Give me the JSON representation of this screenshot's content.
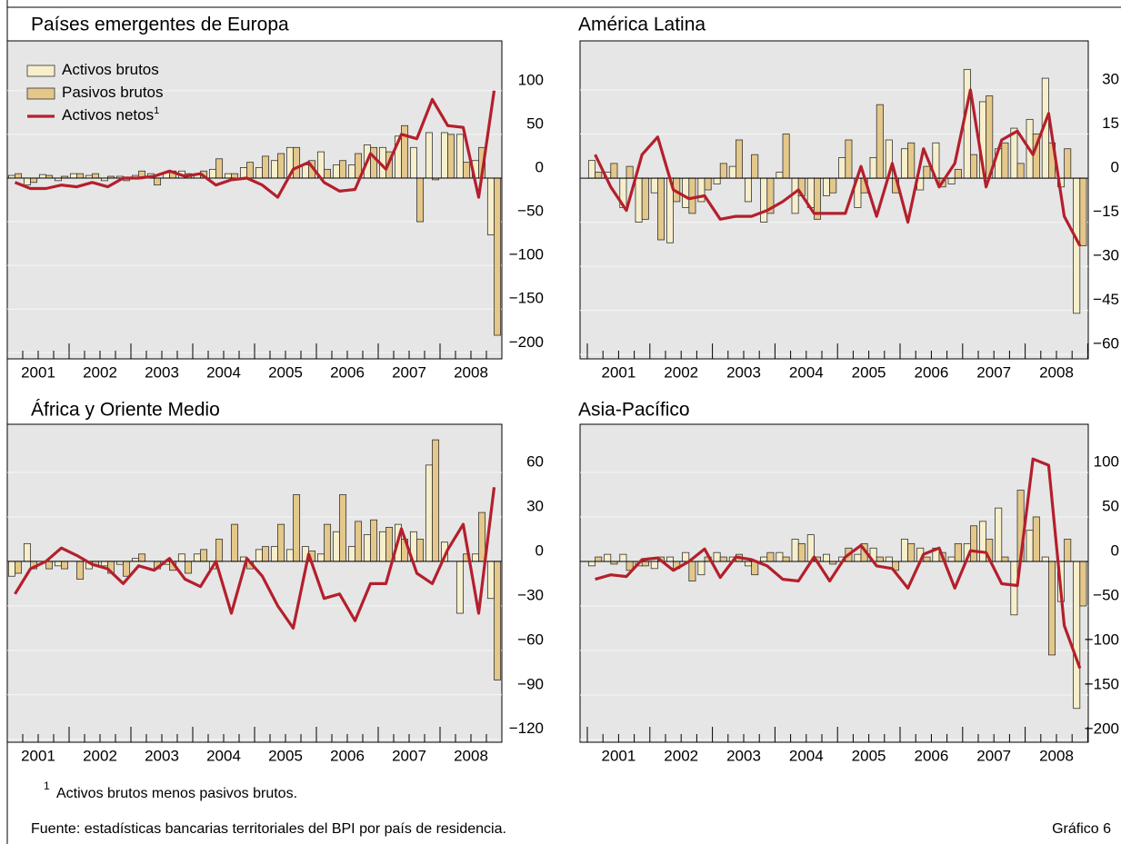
{
  "chart_data": [
    {
      "type": "bar",
      "title": "Países emergentes de Europa",
      "categories": [
        null,
        "2001",
        null,
        null,
        null,
        "2002",
        null,
        null,
        null,
        "2003",
        null,
        null,
        null,
        "2004",
        null,
        null,
        null,
        "2005",
        null,
        null,
        null,
        "2006",
        null,
        null,
        null,
        "2007",
        null,
        null,
        null,
        "2008",
        null,
        null
      ],
      "ylim": [
        -207,
        157
      ],
      "yticks": [
        {
          "value": -200,
          "label": "−200"
        },
        {
          "value": -150,
          "label": "−150"
        },
        {
          "value": -100,
          "label": "−100"
        },
        {
          "value": -50,
          "label": "−50"
        },
        0,
        50,
        100
      ],
      "grid": true,
      "legend": "upper left",
      "series": [
        {
          "name": "Activos brutos",
          "type": "bar",
          "color": "#f7efcc",
          "values": [
            3,
            -8,
            4,
            -3,
            5,
            3,
            -3,
            2,
            3,
            5,
            6,
            8,
            5,
            10,
            5,
            12,
            12,
            20,
            35,
            15,
            30,
            15,
            15,
            38,
            35,
            48,
            35,
            52,
            52,
            50,
            20,
            -65
          ]
        },
        {
          "name": "Pasivos brutos",
          "type": "bar",
          "color": "#e4c78a",
          "values": [
            5,
            -5,
            3,
            2,
            5,
            5,
            2,
            -3,
            8,
            -8,
            8,
            5,
            8,
            22,
            5,
            18,
            25,
            28,
            35,
            20,
            10,
            20,
            28,
            35,
            30,
            60,
            -50,
            -2,
            50,
            18,
            35,
            -180
          ]
        },
        {
          "name": "Activos netos",
          "footnote_ref": "1",
          "type": "line",
          "color": "#b41f2c",
          "values": [
            -5,
            -12,
            -12,
            -8,
            -10,
            -5,
            -10,
            0,
            0,
            2,
            8,
            2,
            5,
            -8,
            -2,
            0,
            -8,
            -22,
            10,
            18,
            -5,
            -15,
            -13,
            28,
            10,
            50,
            45,
            90,
            60,
            58,
            -22,
            100
          ]
        }
      ]
    },
    {
      "type": "bar",
      "title": "América Latina",
      "categories": [
        null,
        "2001",
        null,
        null,
        null,
        "2002",
        null,
        null,
        null,
        "2003",
        null,
        null,
        null,
        "2004",
        null,
        null,
        null,
        "2005",
        null,
        null,
        null,
        "2006",
        null,
        null,
        null,
        "2007",
        null,
        null,
        null,
        "2008",
        null,
        null
      ],
      "ylim": [
        -61.5,
        46.7
      ],
      "yticks": [
        {
          "value": -60,
          "label": "−60"
        },
        {
          "value": -45,
          "label": "−45"
        },
        {
          "value": -30,
          "label": "−30"
        },
        {
          "value": -15,
          "label": "−15"
        },
        0,
        15,
        30
      ],
      "grid": true,
      "series": [
        {
          "type": "bar",
          "color": "#f7efcc",
          "values": [
            6,
            2,
            -10,
            -15,
            -5,
            -22,
            -10,
            -8,
            -2,
            4,
            -8,
            -15,
            2,
            -12,
            -10,
            -6,
            7,
            -10,
            7,
            13,
            10,
            -4,
            12,
            -2,
            37,
            26,
            10,
            17,
            20,
            34,
            -3,
            -46
          ]
        },
        {
          "type": "bar",
          "color": "#e4c78a",
          "values": [
            2,
            5,
            4,
            -14,
            -21,
            -8,
            -12,
            -4,
            5,
            13,
            8,
            -12,
            15,
            -6,
            -14,
            -5,
            13,
            -5,
            25,
            -5,
            12,
            4,
            -3,
            3,
            8,
            28,
            12,
            5,
            15,
            12,
            10,
            -23
          ]
        },
        {
          "type": "line",
          "color": "#b41f2c",
          "values": [
            8,
            -3,
            -11,
            8,
            14,
            -4,
            -7,
            -6,
            -14,
            -13,
            -13,
            -11,
            -8,
            -4,
            -12,
            -12,
            -12,
            4,
            -13,
            5,
            -15,
            10,
            -3,
            5,
            30,
            -3,
            13,
            16,
            8,
            22,
            -13,
            -23
          ]
        }
      ]
    },
    {
      "type": "bar",
      "title": "África y Oriente Medio",
      "categories": [
        null,
        "2001",
        null,
        null,
        null,
        "2002",
        null,
        null,
        null,
        "2003",
        null,
        null,
        null,
        "2004",
        null,
        null,
        null,
        "2005",
        null,
        null,
        null,
        "2006",
        null,
        null,
        null,
        "2007",
        null,
        null,
        null,
        "2008",
        null,
        null
      ],
      "ylim": [
        -122,
        92.5
      ],
      "yticks": [
        {
          "value": -120,
          "label": "−120"
        },
        {
          "value": -90,
          "label": "−90"
        },
        {
          "value": -60,
          "label": "−60"
        },
        {
          "value": -30,
          "label": "−30"
        },
        0,
        30,
        60
      ],
      "grid": true,
      "series": [
        {
          "type": "bar",
          "color": "#f7efcc",
          "values": [
            -10,
            12,
            0,
            -3,
            0,
            -5,
            -3,
            -2,
            2,
            0,
            -2,
            5,
            5,
            -5,
            0,
            3,
            8,
            10,
            8,
            10,
            5,
            20,
            10,
            18,
            20,
            25,
            20,
            65,
            13,
            -35,
            5,
            -25
          ]
        },
        {
          "type": "bar",
          "color": "#e4c78a",
          "values": [
            -8,
            -5,
            -5,
            -5,
            -12,
            -3,
            -8,
            -10,
            5,
            -5,
            -6,
            -8,
            8,
            15,
            25,
            -5,
            10,
            25,
            45,
            7,
            25,
            45,
            27,
            28,
            23,
            15,
            15,
            82,
            0,
            5,
            33,
            -80
          ]
        },
        {
          "type": "line",
          "color": "#b41f2c",
          "values": [
            -22,
            -5,
            0,
            9,
            4,
            -2,
            -5,
            -15,
            -3,
            -6,
            2,
            -12,
            -17,
            0,
            -35,
            2,
            -10,
            -30,
            -45,
            5,
            -25,
            -22,
            -40,
            -15,
            -15,
            22,
            -8,
            -15,
            8,
            25,
            -35,
            50
          ]
        }
      ]
    },
    {
      "type": "bar",
      "title": "Asia-Pacífico",
      "categories": [
        null,
        "2001",
        null,
        null,
        null,
        "2002",
        null,
        null,
        null,
        "2003",
        null,
        null,
        null,
        "2004",
        null,
        null,
        null,
        "2005",
        null,
        null,
        null,
        "2006",
        null,
        null,
        null,
        "2007",
        null,
        null,
        null,
        "2008",
        null,
        null
      ],
      "ylim": [
        -203,
        154
      ],
      "yticks": [
        {
          "value": -200,
          "label": "−200"
        },
        {
          "value": -150,
          "label": "−150"
        },
        {
          "value": -100,
          "label": "−100"
        },
        {
          "value": -50,
          "label": "−50"
        },
        0,
        50,
        100
      ],
      "grid": true,
      "series": [
        {
          "type": "bar",
          "color": "#f7efcc",
          "values": [
            -5,
            8,
            8,
            -5,
            -8,
            5,
            10,
            -15,
            10,
            5,
            -5,
            5,
            10,
            25,
            30,
            8,
            5,
            8,
            15,
            5,
            25,
            15,
            15,
            5,
            20,
            45,
            60,
            -60,
            35,
            5,
            -45,
            -165
          ]
        },
        {
          "type": "bar",
          "color": "#e4c78a",
          "values": [
            5,
            -3,
            -10,
            -5,
            5,
            -8,
            -22,
            5,
            5,
            8,
            -15,
            10,
            5,
            20,
            5,
            -3,
            15,
            20,
            5,
            -10,
            20,
            5,
            10,
            20,
            40,
            25,
            5,
            80,
            50,
            -105,
            25,
            -50
          ]
        },
        {
          "type": "line",
          "color": "#b41f2c",
          "values": [
            -20,
            -15,
            -17,
            2,
            4,
            -10,
            0,
            14,
            -18,
            5,
            2,
            -5,
            -20,
            -22,
            5,
            -22,
            5,
            18,
            -5,
            -8,
            -30,
            8,
            15,
            -30,
            12,
            10,
            -25,
            -27,
            115,
            108,
            -72,
            -120
          ]
        }
      ]
    }
  ],
  "footnote": {
    "mark": "1",
    "text": "Activos brutos menos pasivos brutos."
  },
  "source": "Fuente: estadísticas bancarias territoriales del BPI por país de residencia.",
  "figure_label": "Gráfico 6"
}
